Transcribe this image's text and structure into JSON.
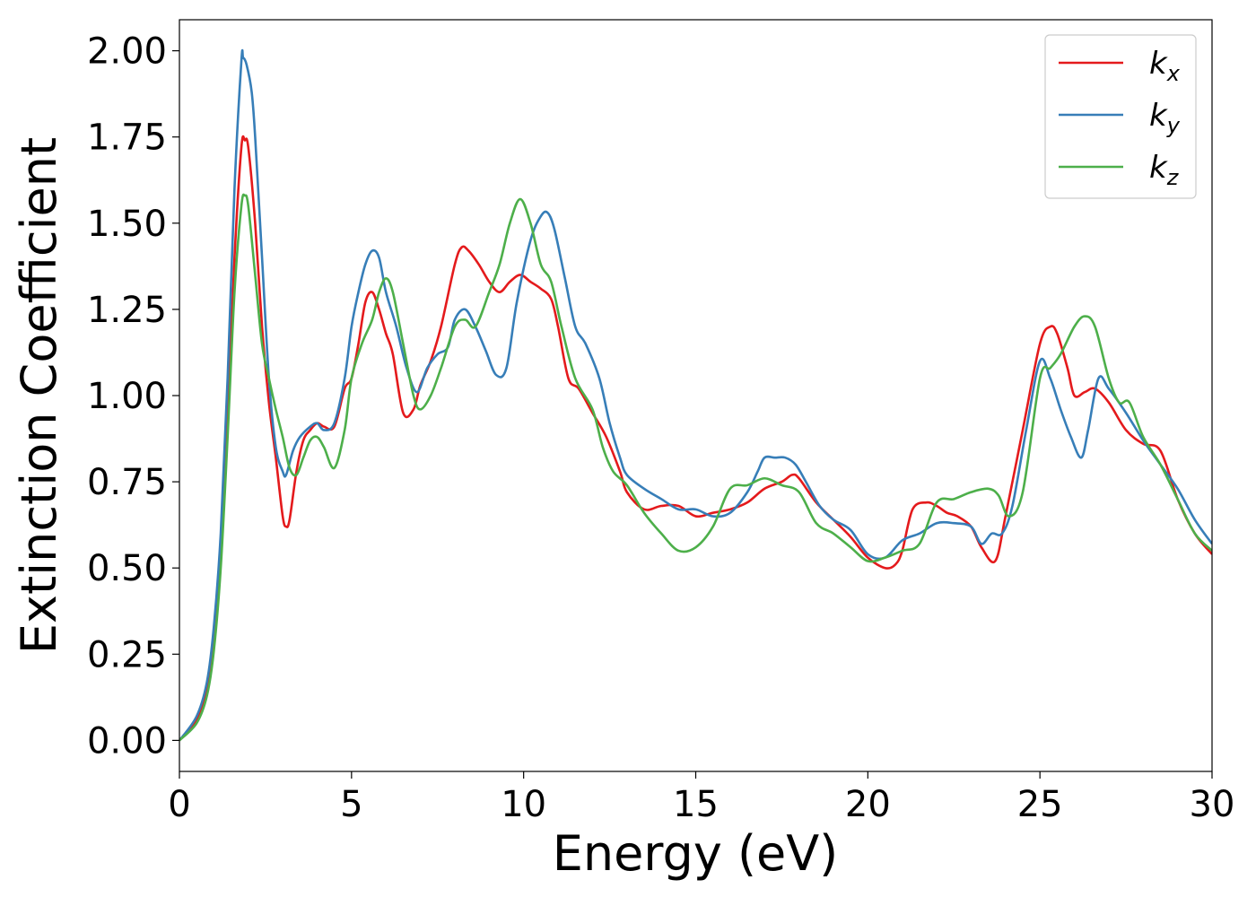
{
  "chart_data": {
    "type": "line",
    "xlabel": "Energy (eV)",
    "ylabel": "Extinction Coefficient",
    "xlim": [
      0,
      30
    ],
    "ylim": [
      -0.09,
      2.09
    ],
    "xticks": [
      "0",
      "5",
      "10",
      "15",
      "20",
      "25",
      "30"
    ],
    "yticks": [
      "0.00",
      "0.25",
      "0.50",
      "0.75",
      "1.00",
      "1.25",
      "1.50",
      "1.75",
      "2.00"
    ],
    "grid": false,
    "legend_position": "top-right",
    "series": [
      {
        "name": "k",
        "subscript": "x",
        "color": "#e41a1c",
        "x": [
          0,
          0.5,
          0.8,
          1.0,
          1.2,
          1.4,
          1.6,
          1.8,
          1.9,
          2.0,
          2.2,
          2.4,
          2.6,
          2.8,
          3.0,
          3.1,
          3.2,
          3.4,
          3.6,
          3.8,
          4.0,
          4.2,
          4.5,
          4.8,
          5.0,
          5.2,
          5.4,
          5.6,
          5.8,
          6.0,
          6.2,
          6.5,
          6.8,
          7.0,
          7.3,
          7.6,
          8.0,
          8.2,
          8.4,
          8.7,
          9.0,
          9.3,
          9.6,
          9.9,
          10.2,
          10.5,
          10.8,
          11.0,
          11.3,
          11.6,
          12.0,
          12.4,
          12.8,
          13.0,
          13.5,
          14.0,
          14.5,
          15.0,
          15.5,
          16.0,
          16.5,
          17.0,
          17.5,
          17.8,
          18.0,
          18.5,
          19.0,
          19.5,
          20.0,
          20.5,
          20.8,
          21.0,
          21.3,
          21.7,
          22.0,
          22.3,
          22.6,
          23.0,
          23.3,
          23.7,
          24.0,
          24.5,
          25.0,
          25.3,
          25.5,
          25.8,
          26.0,
          26.3,
          26.6,
          27.0,
          27.5,
          28.0,
          28.5,
          29.0,
          29.5,
          30.0
        ],
        "y": [
          0.0,
          0.06,
          0.15,
          0.3,
          0.55,
          0.95,
          1.4,
          1.72,
          1.74,
          1.72,
          1.5,
          1.2,
          0.98,
          0.82,
          0.65,
          0.62,
          0.64,
          0.78,
          0.87,
          0.9,
          0.92,
          0.91,
          0.91,
          1.02,
          1.05,
          1.15,
          1.27,
          1.3,
          1.25,
          1.18,
          1.12,
          0.95,
          0.96,
          1.03,
          1.1,
          1.2,
          1.38,
          1.43,
          1.42,
          1.38,
          1.33,
          1.3,
          1.33,
          1.35,
          1.33,
          1.31,
          1.28,
          1.2,
          1.05,
          1.02,
          0.95,
          0.88,
          0.78,
          0.72,
          0.67,
          0.68,
          0.68,
          0.65,
          0.66,
          0.67,
          0.69,
          0.73,
          0.75,
          0.77,
          0.76,
          0.69,
          0.64,
          0.59,
          0.53,
          0.5,
          0.51,
          0.55,
          0.67,
          0.69,
          0.68,
          0.66,
          0.65,
          0.62,
          0.56,
          0.52,
          0.65,
          0.9,
          1.15,
          1.2,
          1.18,
          1.08,
          1.0,
          1.01,
          1.02,
          0.98,
          0.9,
          0.86,
          0.84,
          0.7,
          0.6,
          0.54
        ]
      },
      {
        "name": "k",
        "subscript": "y",
        "color": "#377eb8",
        "x": [
          0,
          0.5,
          0.8,
          1.0,
          1.2,
          1.4,
          1.6,
          1.8,
          1.85,
          1.95,
          2.1,
          2.2,
          2.4,
          2.6,
          2.8,
          3.0,
          3.1,
          3.3,
          3.5,
          3.8,
          4.0,
          4.2,
          4.5,
          4.8,
          5.0,
          5.2,
          5.4,
          5.6,
          5.8,
          6.0,
          6.3,
          6.6,
          6.9,
          7.2,
          7.5,
          7.8,
          8.0,
          8.3,
          8.6,
          8.9,
          9.2,
          9.5,
          9.8,
          10.2,
          10.5,
          10.7,
          10.9,
          11.2,
          11.5,
          11.8,
          12.2,
          12.5,
          12.8,
          13.0,
          13.5,
          14.0,
          14.5,
          15.0,
          15.5,
          16.0,
          16.5,
          16.8,
          17.0,
          17.3,
          17.6,
          17.9,
          18.2,
          18.6,
          19.0,
          19.5,
          20.0,
          20.5,
          21.0,
          21.5,
          22.0,
          22.5,
          23.0,
          23.3,
          23.6,
          23.9,
          24.2,
          24.6,
          25.0,
          25.3,
          25.6,
          25.9,
          26.2,
          26.4,
          26.7,
          27.0,
          27.5,
          28.0,
          28.5,
          29.0,
          29.5,
          30.0
        ],
        "y": [
          0.0,
          0.07,
          0.17,
          0.33,
          0.6,
          1.05,
          1.6,
          1.97,
          1.98,
          1.96,
          1.88,
          1.75,
          1.4,
          1.05,
          0.85,
          0.78,
          0.77,
          0.84,
          0.88,
          0.91,
          0.92,
          0.9,
          0.92,
          1.05,
          1.2,
          1.3,
          1.38,
          1.42,
          1.4,
          1.3,
          1.2,
          1.08,
          1.01,
          1.08,
          1.12,
          1.14,
          1.22,
          1.25,
          1.2,
          1.13,
          1.06,
          1.08,
          1.27,
          1.45,
          1.52,
          1.53,
          1.48,
          1.34,
          1.2,
          1.15,
          1.05,
          0.92,
          0.82,
          0.77,
          0.73,
          0.7,
          0.67,
          0.67,
          0.65,
          0.66,
          0.72,
          0.78,
          0.82,
          0.82,
          0.82,
          0.8,
          0.75,
          0.68,
          0.64,
          0.61,
          0.54,
          0.53,
          0.58,
          0.6,
          0.63,
          0.63,
          0.62,
          0.57,
          0.6,
          0.6,
          0.68,
          0.9,
          1.1,
          1.05,
          0.96,
          0.88,
          0.82,
          0.9,
          1.05,
          1.02,
          0.95,
          0.87,
          0.8,
          0.73,
          0.64,
          0.57
        ]
      },
      {
        "name": "k",
        "subscript": "z",
        "color": "#4daf4a",
        "x": [
          0,
          0.5,
          0.8,
          1.0,
          1.2,
          1.4,
          1.6,
          1.8,
          1.9,
          2.0,
          2.2,
          2.4,
          2.6,
          2.8,
          3.0,
          3.2,
          3.4,
          3.6,
          3.8,
          4.0,
          4.2,
          4.5,
          4.8,
          5.0,
          5.3,
          5.6,
          5.8,
          6.0,
          6.2,
          6.5,
          6.8,
          7.0,
          7.3,
          7.6,
          8.0,
          8.3,
          8.6,
          9.0,
          9.3,
          9.6,
          9.9,
          10.2,
          10.5,
          10.8,
          11.1,
          11.5,
          12.0,
          12.3,
          12.6,
          13.0,
          13.5,
          14.0,
          14.5,
          15.0,
          15.5,
          16.0,
          16.5,
          17.0,
          17.5,
          18.0,
          18.5,
          19.0,
          19.5,
          20.0,
          20.5,
          21.0,
          21.5,
          22.0,
          22.5,
          23.0,
          23.5,
          23.8,
          24.1,
          24.5,
          25.0,
          25.3,
          25.6,
          26.0,
          26.3,
          26.6,
          27.0,
          27.3,
          27.6,
          28.0,
          28.5,
          29.0,
          29.5,
          30.0
        ],
        "y": [
          0.0,
          0.05,
          0.13,
          0.26,
          0.5,
          0.88,
          1.3,
          1.55,
          1.58,
          1.55,
          1.35,
          1.15,
          1.05,
          0.96,
          0.88,
          0.79,
          0.77,
          0.82,
          0.87,
          0.88,
          0.85,
          0.79,
          0.9,
          1.05,
          1.15,
          1.22,
          1.3,
          1.34,
          1.3,
          1.15,
          1.0,
          0.96,
          1.0,
          1.08,
          1.2,
          1.22,
          1.2,
          1.3,
          1.38,
          1.5,
          1.57,
          1.5,
          1.38,
          1.33,
          1.2,
          1.05,
          0.96,
          0.85,
          0.78,
          0.74,
          0.66,
          0.6,
          0.55,
          0.56,
          0.62,
          0.73,
          0.74,
          0.76,
          0.74,
          0.72,
          0.63,
          0.6,
          0.56,
          0.52,
          0.53,
          0.55,
          0.57,
          0.69,
          0.7,
          0.72,
          0.73,
          0.71,
          0.65,
          0.72,
          1.05,
          1.08,
          1.12,
          1.2,
          1.23,
          1.2,
          1.05,
          0.98,
          0.98,
          0.88,
          0.8,
          0.7,
          0.6,
          0.55
        ]
      }
    ]
  }
}
